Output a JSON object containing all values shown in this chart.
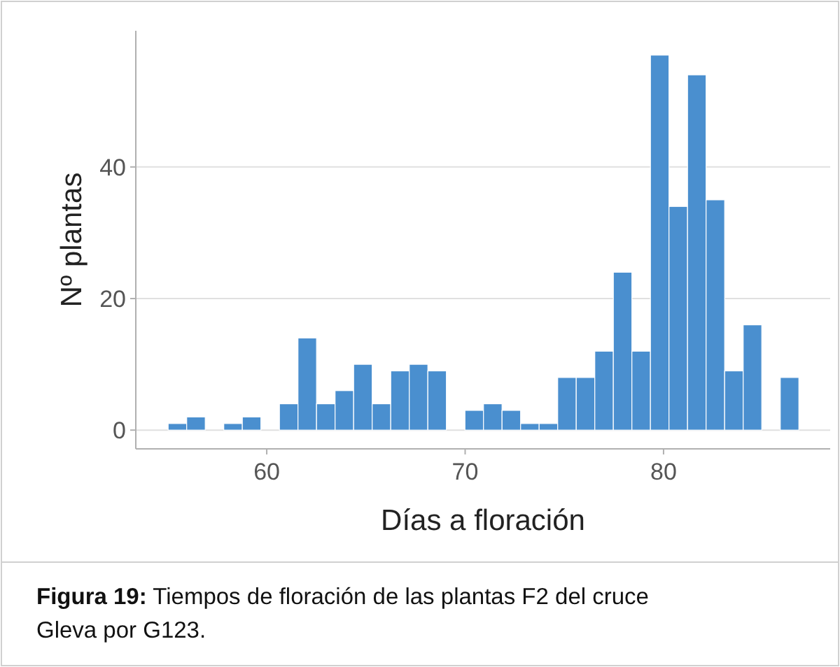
{
  "chart_data": {
    "type": "histogram",
    "xlabel": "Días a floración",
    "ylabel": "Nº plantas",
    "color": "#4a8fcf",
    "bins": [
      55.03,
      55.965,
      56.9,
      57.835,
      58.77,
      59.705,
      60.64,
      61.575,
      62.51,
      63.445,
      64.38,
      65.315,
      66.25,
      67.185,
      68.12,
      69.055,
      69.99,
      70.925,
      71.86,
      72.795,
      73.73,
      74.665,
      75.6,
      76.535,
      77.47,
      78.405,
      79.34,
      80.275,
      81.21,
      82.145,
      83.08,
      84.015,
      84.95,
      85.885,
      86.82
    ],
    "values": [
      1,
      2,
      0,
      1,
      2,
      0,
      4,
      14,
      4,
      6,
      10,
      4,
      9,
      10,
      9,
      0,
      3,
      4,
      3,
      1,
      1,
      8,
      8,
      12,
      24,
      12,
      57,
      34,
      54,
      35,
      9,
      16,
      0,
      8
    ],
    "xlim": [
      53.4,
      88.4
    ],
    "xticks": [
      60,
      70,
      80
    ],
    "ylim": [
      -2.85,
      60.7
    ],
    "yticks": [
      0,
      20,
      40
    ],
    "grid": "y",
    "annotations": [
      "Figura 19: Tiempos de floración de las plantas F2 del cruce Gleva por G123."
    ]
  }
}
